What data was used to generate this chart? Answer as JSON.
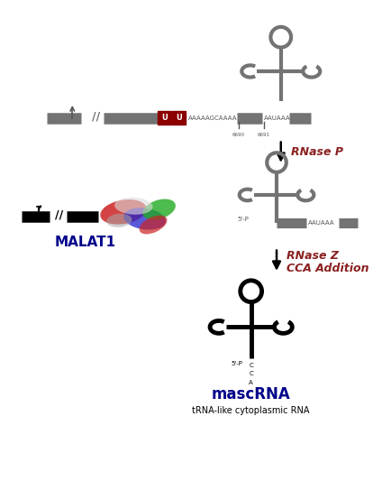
{
  "bg_color": "#ffffff",
  "gray_color": "#737373",
  "dark_gray": "#555555",
  "red_color": "#8B0000",
  "blue_color": "#00008B",
  "arrow_red": "#8B2020",
  "seq1": "AAAAAGCAAAA",
  "seq2": "AAUAAA",
  "label_6690": "6690",
  "label_6691": "6691",
  "rnase_p_label": "RNase P",
  "rnase_z_label": "RNase Z",
  "cca_label": "CCA Addition",
  "malat1_label": "MALAT1",
  "mascrna_label": "mascRNA",
  "subtitle": "tRNA-like cytoplasmic RNA",
  "five_p": "5'-P"
}
